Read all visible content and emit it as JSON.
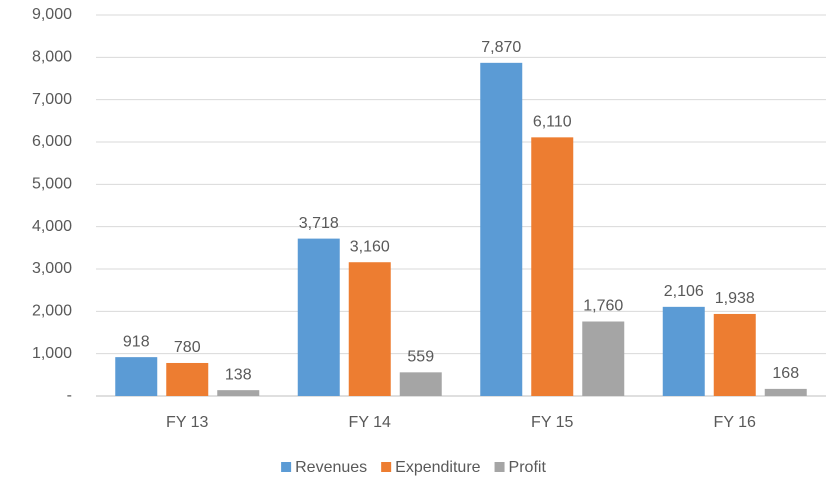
{
  "chart_data": {
    "type": "bar",
    "categories": [
      "FY 13",
      "FY 14",
      "FY 15",
      "FY 16"
    ],
    "series": [
      {
        "name": "Revenues",
        "color": "#5b9bd5",
        "values": [
          918,
          3718,
          7870,
          2106
        ],
        "value_labels": [
          "918",
          "3,718",
          "7,870",
          "2,106"
        ]
      },
      {
        "name": "Expenditure",
        "color": "#ed7d31",
        "values": [
          780,
          3160,
          6110,
          1938
        ],
        "value_labels": [
          "780",
          "3,160",
          "6,110",
          "1,938"
        ]
      },
      {
        "name": "Profit",
        "color": "#a5a5a5",
        "values": [
          138,
          559,
          1760,
          168
        ],
        "value_labels": [
          "138",
          "559",
          "1,760",
          "168"
        ]
      }
    ],
    "ylim": [
      0,
      9000
    ],
    "yticks": [
      {
        "value": 0,
        "label": "-"
      },
      {
        "value": 1000,
        "label": "1,000"
      },
      {
        "value": 2000,
        "label": "2,000"
      },
      {
        "value": 3000,
        "label": "3,000"
      },
      {
        "value": 4000,
        "label": "4,000"
      },
      {
        "value": 5000,
        "label": "5,000"
      },
      {
        "value": 6000,
        "label": "6,000"
      },
      {
        "value": 7000,
        "label": "7,000"
      },
      {
        "value": 8000,
        "label": "8,000"
      },
      {
        "value": 9000,
        "label": "9,000"
      }
    ],
    "grid": true,
    "legend": "bottom"
  }
}
